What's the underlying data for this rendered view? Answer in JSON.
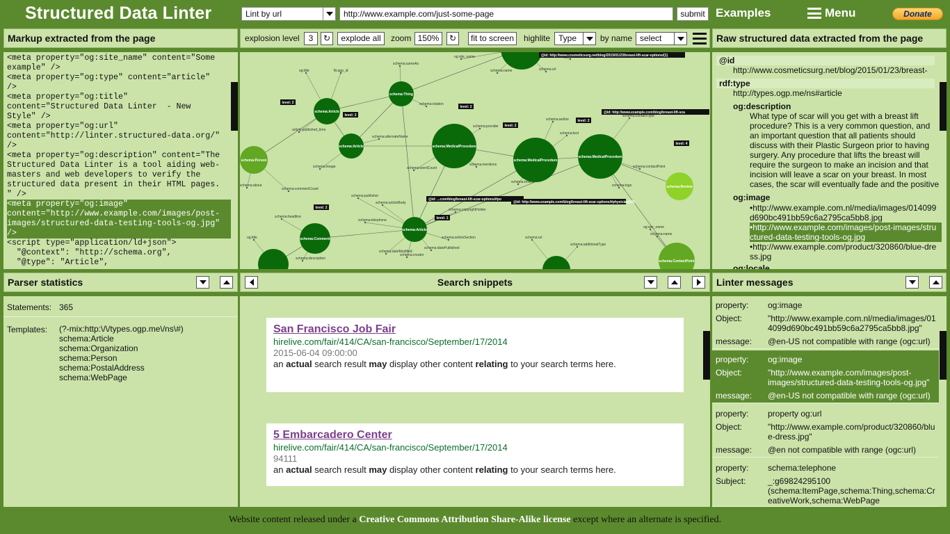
{
  "header": {
    "title": "Structured Data Linter",
    "lint_mode": "Lint by url",
    "url_value": "http://www.example.com/just-some-page",
    "submit_label": "submit",
    "examples_label": "Examples",
    "menu_label": "Menu",
    "donate_label": "Donate"
  },
  "markup_panel": {
    "title": "Markup extracted from the page",
    "lines": [
      {
        "text": "<meta property=\"og:site_name\" content=\"Some",
        "hl": false
      },
      {
        "text": "example\" />",
        "hl": false
      },
      {
        "text": "<meta property=\"og:type\" content=\"article\"",
        "hl": false
      },
      {
        "text": "/>",
        "hl": false
      },
      {
        "text": "<meta property=\"og:title\"",
        "hl": false
      },
      {
        "text": "content=\"Structured Data Linter  - New",
        "hl": false
      },
      {
        "text": "Style\" />",
        "hl": false
      },
      {
        "text": "<meta property=\"og:url\"",
        "hl": false
      },
      {
        "text": "content=\"http://linter.structured-data.org/\"",
        "hl": false
      },
      {
        "text": "/>",
        "hl": false
      },
      {
        "text": "<meta property=\"og:description\" content=\"The",
        "hl": false
      },
      {
        "text": "Structured Data Linter is a tool aiding web-",
        "hl": false
      },
      {
        "text": "masters and web developers to verify the",
        "hl": false
      },
      {
        "text": "structured data present in their HTML pages.",
        "hl": false
      },
      {
        "text": "\" />",
        "hl": false
      },
      {
        "text": "<meta property=\"og:image\"",
        "hl": true
      },
      {
        "text": "content=\"http://www.example.com/images/post-",
        "hl": true
      },
      {
        "text": "images/structured-data-testing-tools-og.jpg\"",
        "hl": true
      },
      {
        "text": "/>",
        "hl": true
      },
      {
        "text": "<script type=\"application/ld+json\">",
        "hl": false
      },
      {
        "text": "  \"@context\": \"http://schema.org\",",
        "hl": false
      },
      {
        "text": "  \"@type\": \"Article\",",
        "hl": false
      }
    ]
  },
  "graph_toolbar": {
    "explosion_label": "explosion level",
    "explosion_value": "3",
    "refresh_icon": "↻",
    "explode_all_label": "explode all",
    "zoom_label": "zoom",
    "zoom_value": "150%",
    "fit_label": "fit to screen",
    "highlight_label": "highlite",
    "highlight_value": "Type",
    "by_name_label": "by name",
    "select_label": "select"
  },
  "graph": {
    "node_labels": [
      "schema:Article",
      "schema:Article",
      "schema:Thing",
      "schema:Person",
      "schema:MedicalProcedure",
      "schema:MedicalProcedure",
      "schema:MedicalProcedure",
      "schema:Review",
      "schema:Comment",
      "schema:Article",
      "schema:ContactPoint"
    ],
    "level_tags": [
      "level: 2",
      "level: 2",
      "level: 2",
      "level: 2",
      "level: 2",
      "level: 2",
      "level: 1",
      "level: 2",
      "level: 4",
      "level: 2",
      "level: 2"
    ],
    "id_tags": [
      "@id: http://www.cosmeticsurg.net/blog/2015/01/23/breast-lift-scar-options/(1)",
      "@id: http://www.example.com/blog/breast-lift-sca",
      "@id: ...com/blog/breast-lift-scar-options/#po",
      "@id: http://www.example.com/blog/breast-lift-scar-options/#physician(10)"
    ],
    "edge_labels": [
      "og:site_name",
      "schema:name",
      "schema:url",
      "schema:additionalType",
      "og:title",
      "fb:app_id",
      "article:published_time",
      "schema:image",
      "schema:alternateName",
      "schema:sameAs",
      "schema:citation",
      "schema:about",
      "schema:commentCount",
      "schema:wordCount",
      "schema:provider",
      "schema:mentions",
      "schema:author",
      "schema:text",
      "schema:review",
      "schema:contactType",
      "schema:contactPoint",
      "schema:logo",
      "schema:publisher",
      "schema:telephone",
      "schema:dateModified",
      "schema:datePublished",
      "schema:articleSection",
      "schema:copyrightHolder",
      "schema:articleBody",
      "schema:creator",
      "schema:headline",
      "schema:description"
    ]
  },
  "raw_panel": {
    "title": "Raw structured data extracted from the page",
    "id_key": "@id",
    "id_value": "http://www.cosmeticsurg.net/blog/2015/01/23/breast-",
    "type_key": "rdf:type",
    "type_value": "http://types.ogp.me/ns#article",
    "desc_key": "og:description",
    "desc_lines": [
      "What type of scar will you get with a breast lift",
      "procedure? This is a very common question, and",
      "an important question that all patients should",
      "discuss with their Plastic Surgeon prior to having",
      "surgery. Any procedure that lifts the breast will",
      "require the surgeon to make an incision and that",
      "incision will leave a scar on your breast. In most",
      "cases, the scar will eventually fade and the positive"
    ],
    "image_key": "og:image",
    "image_lines": [
      {
        "text": "•http://www.example.com.nl/media/images/014099",
        "hl": false
      },
      {
        "text": "d690bc491bb59c6a2795ca5bb8.jpg",
        "hl": false
      },
      {
        "text": "•http://www.example.com/images/post-images/stru",
        "hl": true
      },
      {
        "text": "ctured-data-testing-tools-og.jpg",
        "hl": true
      },
      {
        "text": "•http://www.example.com/product/320860/blue-dre",
        "hl": false
      },
      {
        "text": "ss.jpg",
        "hl": false
      }
    ],
    "locale_key": "og:locale"
  },
  "parser_stats": {
    "title": "Parser statistics",
    "statements_label": "Statements:",
    "statements_value": "365",
    "templates_label": "Templates:",
    "templates": [
      "(?-mix:http:\\/\\/types.ogp.me\\/ns\\#)",
      "schema:Article",
      "schema:Organization",
      "schema:Person",
      "schema:PostalAddress",
      "schema:WebPage"
    ]
  },
  "snippets": {
    "title": "Search snippets",
    "items": [
      {
        "title": "San Francisco Job Fair",
        "url": "hirelive.com/fair/414/CA/san-francisco/September/17/2014",
        "meta": "2015-06-04 09:00:00"
      },
      {
        "title": "5 Embarcadero Center",
        "url": "hirelive.com/fair/414/CA/san-francisco/September/17/2014",
        "meta": "94111"
      }
    ],
    "desc_parts": [
      "an ",
      "actual",
      " search result ",
      "may",
      " display other content ",
      "relating",
      " to your search terms here."
    ]
  },
  "linter": {
    "title": "Linter messages",
    "messages": [
      {
        "k1": "property:",
        "v1": "og:image",
        "k2": "Object:",
        "v2": "\"http://www.example.com.nl/media/images/01",
        "v2b": "4099d690bc491bb59c6a2795ca5bb8.jpg\"",
        "k3": "message:",
        "v3": "@en-US not compatible with range (ogc:url)",
        "highlight": false
      },
      {
        "k1": "property:",
        "v1": "og:image",
        "k2": "Object:",
        "v2": "\"http://www.example.com/images/post-",
        "v2b": "images/structured-data-testing-tools-og.jpg\"",
        "k3": "message:",
        "v3": "@en-US not compatible with range (ogc:url)",
        "highlight": true
      },
      {
        "k1": "property:",
        "v1": "property og:url",
        "k2": "Object:",
        "v2": "\"http://www.example.com/product/320860/blu",
        "v2b": "e-dress.jpg\"",
        "k3": "message:",
        "v3": "@en not compatible with range (ogc:url)",
        "highlight": false
      },
      {
        "k1": "property:",
        "v1": "schema:telephone",
        "k2": "Subject:",
        "v2": "_:g69824295100",
        "v2b": "(schema:ItemPage,schema:Thing,schema:Cr",
        "v2c": "eativeWork,schema:WebPage",
        "highlight": false
      }
    ]
  },
  "footer": {
    "prefix": "Website content released under a ",
    "license": "Creative Commons Attribution Share-Alike license",
    "suffix": " except where an alternate is specified."
  },
  "colors": {
    "frame": "#5b8a2e",
    "panel": "#cbe3a9",
    "graph_bg": "#c8e3a5",
    "node_dark": "#0a6a0a",
    "node_light": "#62a823",
    "node_lime": "#8fd22a",
    "highlight": "#5b8a2e"
  }
}
